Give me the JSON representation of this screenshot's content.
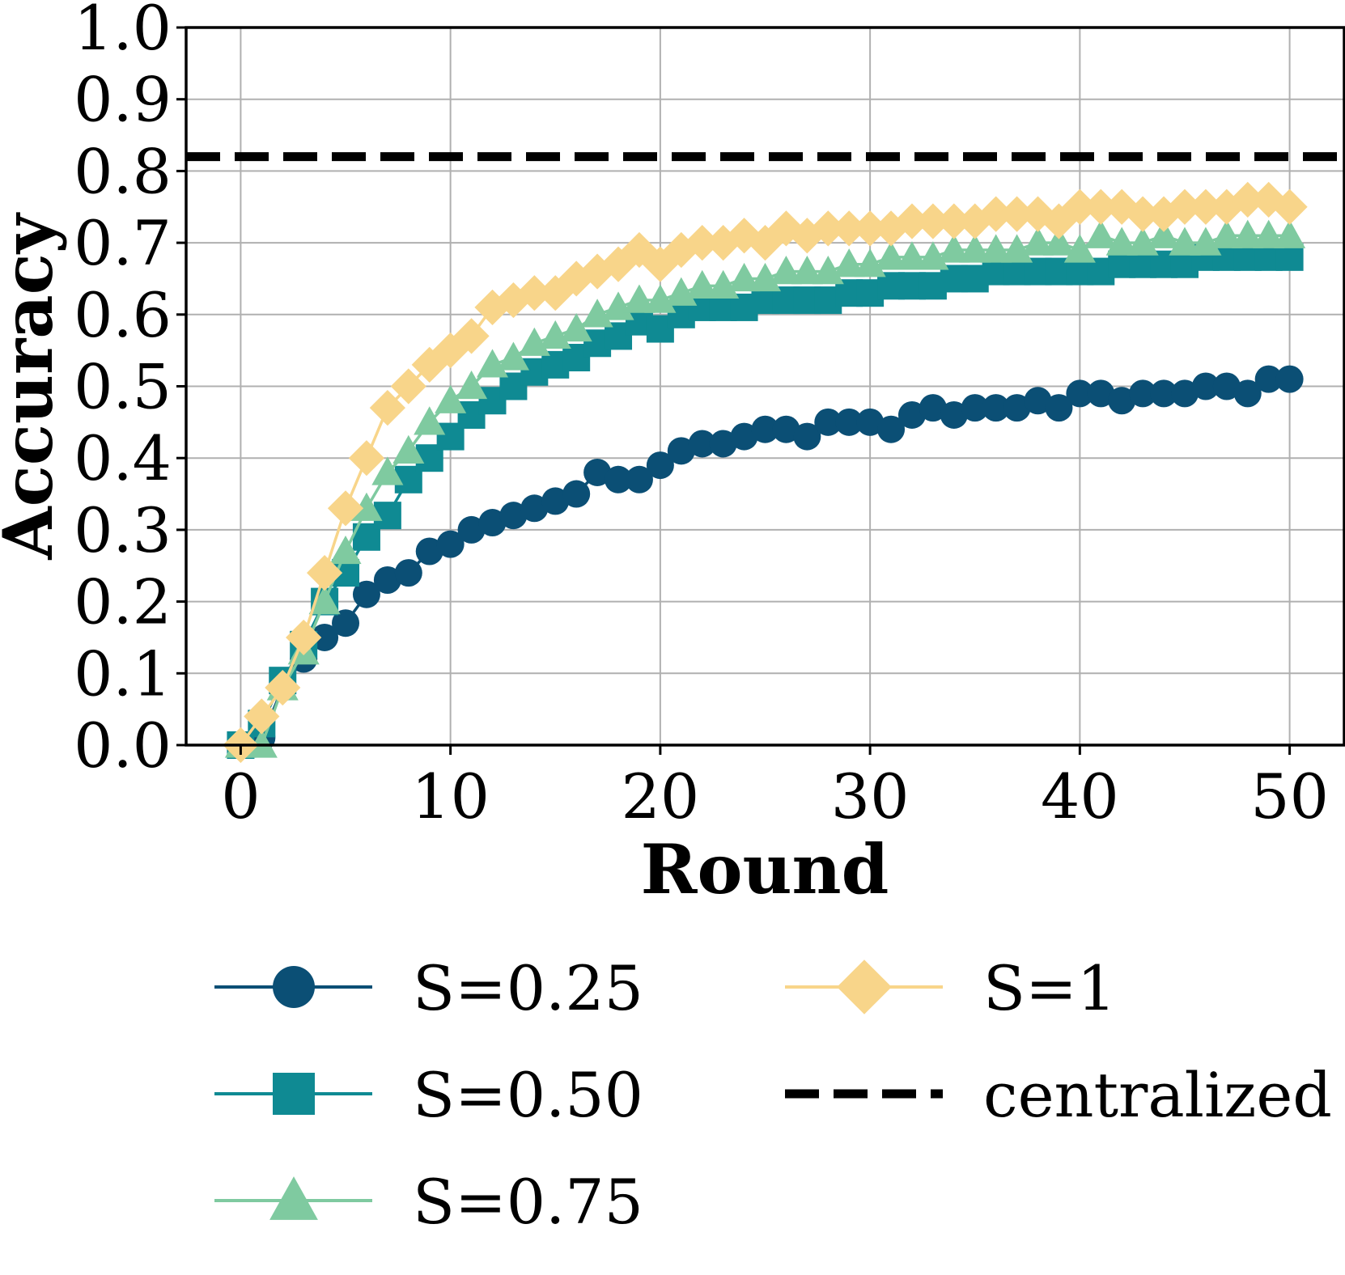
{
  "chart_data": {
    "type": "line",
    "title": "",
    "xlabel": "Round",
    "ylabel": "Accuracy",
    "xlim": [
      -2.6,
      52.6
    ],
    "ylim": [
      0.0,
      1.0
    ],
    "xticks": [
      "0",
      "10",
      "20",
      "30",
      "40",
      "50"
    ],
    "yticks": [
      "0.0",
      "0.1",
      "0.2",
      "0.3",
      "0.4",
      "0.5",
      "0.6",
      "0.7",
      "0.8",
      "0.9",
      "1.0"
    ],
    "grid": true,
    "legend_position": "bottom",
    "x": [
      0,
      1,
      2,
      3,
      4,
      5,
      6,
      7,
      8,
      9,
      10,
      11,
      12,
      13,
      14,
      15,
      16,
      17,
      18,
      19,
      20,
      21,
      22,
      23,
      24,
      25,
      26,
      27,
      28,
      29,
      30,
      31,
      32,
      33,
      34,
      35,
      36,
      37,
      38,
      39,
      40,
      41,
      42,
      43,
      44,
      45,
      46,
      47,
      48,
      49,
      50
    ],
    "series": [
      {
        "name": "S=0.25",
        "color": "#0b4f75",
        "marker": "circle",
        "values": [
          0.0,
          0.01,
          0.08,
          0.12,
          0.15,
          0.17,
          0.21,
          0.23,
          0.24,
          0.27,
          0.28,
          0.3,
          0.31,
          0.32,
          0.33,
          0.34,
          0.35,
          0.38,
          0.37,
          0.37,
          0.39,
          0.41,
          0.42,
          0.42,
          0.43,
          0.44,
          0.44,
          0.43,
          0.45,
          0.45,
          0.45,
          0.44,
          0.46,
          0.47,
          0.46,
          0.47,
          0.47,
          0.47,
          0.48,
          0.47,
          0.49,
          0.49,
          0.48,
          0.49,
          0.49,
          0.49,
          0.5,
          0.5,
          0.49,
          0.51,
          0.51
        ]
      },
      {
        "name": "S=0.50",
        "color": "#0f8a93",
        "marker": "square",
        "values": [
          0.0,
          0.03,
          0.09,
          0.14,
          0.2,
          0.24,
          0.29,
          0.32,
          0.37,
          0.4,
          0.43,
          0.46,
          0.48,
          0.5,
          0.52,
          0.53,
          0.54,
          0.56,
          0.57,
          0.59,
          0.58,
          0.6,
          0.61,
          0.61,
          0.61,
          0.62,
          0.62,
          0.62,
          0.62,
          0.63,
          0.63,
          0.64,
          0.64,
          0.64,
          0.65,
          0.65,
          0.66,
          0.66,
          0.66,
          0.66,
          0.66,
          0.66,
          0.67,
          0.67,
          0.67,
          0.67,
          0.68,
          0.68,
          0.68,
          0.68,
          0.68
        ]
      },
      {
        "name": "S=0.75",
        "color": "#7fcaa0",
        "marker": "triangle",
        "values": [
          0.0,
          0.0,
          0.08,
          0.13,
          0.2,
          0.27,
          0.33,
          0.38,
          0.41,
          0.45,
          0.48,
          0.5,
          0.53,
          0.54,
          0.56,
          0.57,
          0.58,
          0.6,
          0.61,
          0.62,
          0.62,
          0.63,
          0.64,
          0.64,
          0.65,
          0.65,
          0.66,
          0.66,
          0.66,
          0.67,
          0.67,
          0.68,
          0.68,
          0.68,
          0.69,
          0.69,
          0.69,
          0.69,
          0.7,
          0.7,
          0.69,
          0.71,
          0.7,
          0.7,
          0.71,
          0.7,
          0.7,
          0.71,
          0.71,
          0.71,
          0.71
        ]
      },
      {
        "name": "S=1",
        "color": "#f8d58a",
        "marker": "diamond",
        "values": [
          0.0,
          0.04,
          0.08,
          0.15,
          0.24,
          0.33,
          0.4,
          0.47,
          0.5,
          0.53,
          0.55,
          0.57,
          0.61,
          0.62,
          0.63,
          0.63,
          0.65,
          0.66,
          0.67,
          0.69,
          0.67,
          0.69,
          0.7,
          0.7,
          0.71,
          0.7,
          0.72,
          0.71,
          0.72,
          0.72,
          0.72,
          0.72,
          0.73,
          0.73,
          0.73,
          0.73,
          0.74,
          0.74,
          0.74,
          0.73,
          0.75,
          0.75,
          0.75,
          0.74,
          0.74,
          0.75,
          0.75,
          0.75,
          0.76,
          0.76,
          0.75
        ]
      }
    ],
    "reference_line": {
      "name": "centralized",
      "value": 0.82,
      "color": "#000000",
      "style": "dashed"
    }
  }
}
